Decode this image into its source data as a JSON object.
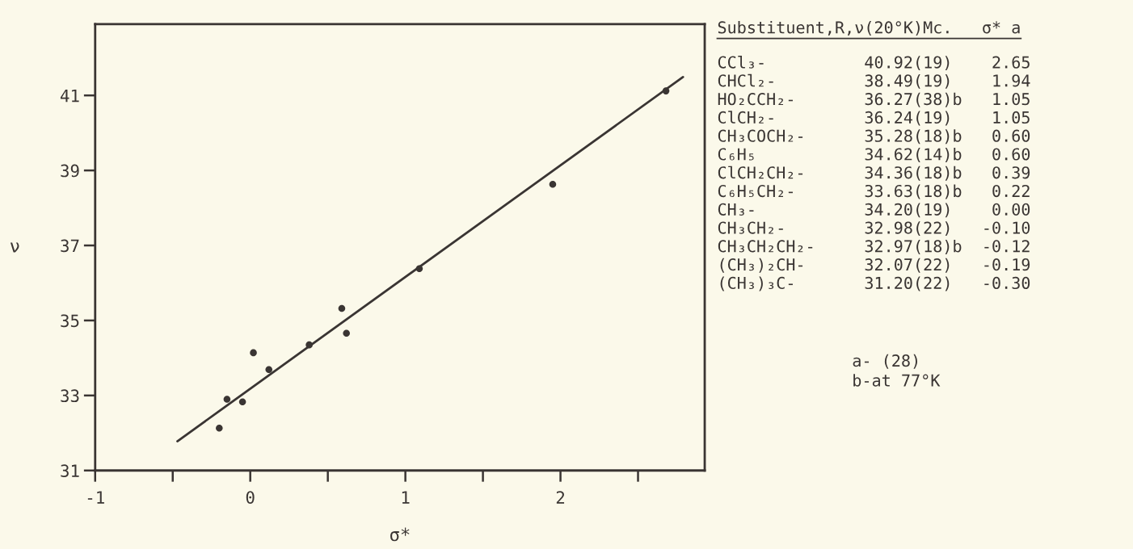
{
  "chart_data": {
    "type": "scatter",
    "xlabel": "σ*",
    "ylabel": "ν",
    "xlim": [
      -1,
      2.93
    ],
    "ylim": [
      31,
      42.9
    ],
    "xticks": [
      -1,
      {
        "value": -0.5,
        "label": null
      },
      0,
      {
        "value": 0.5,
        "label": null
      },
      1,
      {
        "value": 1.5,
        "label": null
      },
      2,
      {
        "value": 2.5,
        "label": null
      }
    ],
    "yticks": [
      31,
      33,
      35,
      37,
      39,
      41
    ],
    "grid": false,
    "marker": "circle",
    "series": [
      {
        "color": "#3a3533",
        "x": [
          -0.2,
          -0.15,
          -0.05,
          0.02,
          0.12,
          0.38,
          0.59,
          0.62,
          1.09,
          1.95,
          2.68
        ],
        "values": [
          32.13,
          32.9,
          32.83,
          34.14,
          33.69,
          34.35,
          35.32,
          34.66,
          36.38,
          38.63,
          41.12
        ]
      },
      {
        "type": "line",
        "color": "#3a3533",
        "line_style": "solid",
        "marker": "none",
        "x": [
          -0.47,
          2.79
        ],
        "values": [
          31.78,
          41.49
        ]
      }
    ],
    "annotations": [
      "Substituent,R,ν(20°K)Mc.   σ* a",
      "CCl₃-          40.92(19)    2.65",
      "CHCl₂-         38.49(19)    1.94",
      "HO₂CCH₂-       36.27(38)b   1.05",
      "ClCH₂-         36.24(19)    1.05",
      "CH₃COCH₂-      35.28(18)b   0.60",
      "C₆H₅           34.62(14)b   0.60",
      "ClCH₂CH₂-      34.36(18)b   0.39",
      "C₆H₅CH₂-       33.63(18)b   0.22",
      "CH₃-           34.20(19)    0.00",
      "CH₃CH₂-        32.98(22)   -0.10",
      "CH₃CH₂CH₂-     32.97(18)b  -0.12",
      "(CH₃)₂CH-      32.07(22)   -0.19",
      "(CH₃)₃C-       31.20(22)   -0.30",
      "a- (28)",
      "b-at 77°K"
    ]
  }
}
